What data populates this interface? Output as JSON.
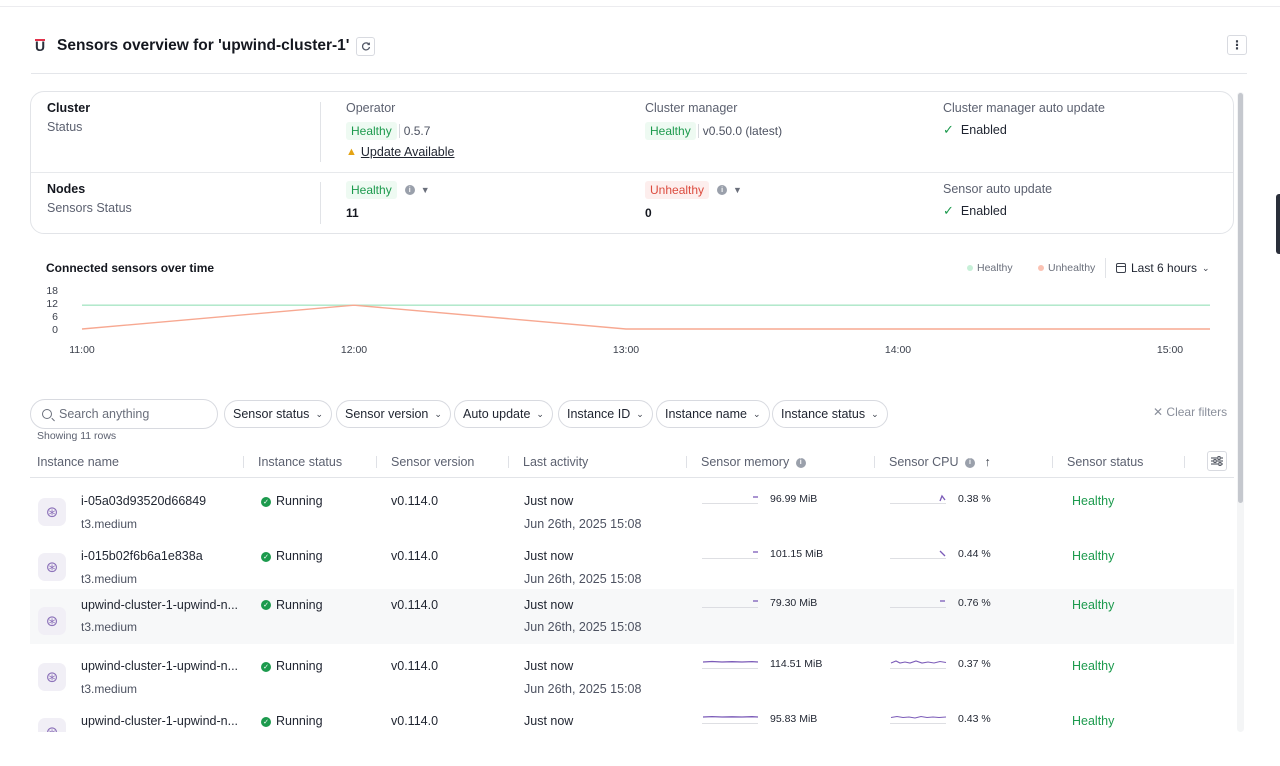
{
  "header": {
    "title": "Sensors overview for 'upwind-cluster-1'"
  },
  "summary": {
    "cluster_title": "Cluster",
    "cluster_sub": "Status",
    "operator_label": "Operator",
    "operator_status": "Healthy",
    "operator_version": "0.5.7",
    "operator_update": "Update Available",
    "manager_label": "Cluster manager",
    "manager_status": "Healthy",
    "manager_version": "v0.50.0 (latest)",
    "manager_auto_label": "Cluster manager auto update",
    "manager_auto_value": "Enabled",
    "nodes_title": "Nodes",
    "nodes_sub": "Sensors Status",
    "healthy_label": "Healthy",
    "healthy_count": "11",
    "unhealthy_label": "Unhealthy",
    "unhealthy_count": "0",
    "sensor_auto_label": "Sensor auto update",
    "sensor_auto_value": "Enabled"
  },
  "chart_header": {
    "title": "Connected sensors over time",
    "legend_healthy": "Healthy",
    "legend_unhealthy": "Unhealthy",
    "range": "Last 6 hours"
  },
  "chart_data": {
    "type": "line",
    "title": "Connected sensors over time",
    "x": [
      "11:00",
      "12:00",
      "13:00",
      "14:00",
      "15:00"
    ],
    "yticks": [
      "18",
      "12",
      "6",
      "0"
    ],
    "ylim": [
      0,
      18
    ],
    "series": [
      {
        "name": "Healthy",
        "color": "#a8e6c4",
        "values": [
          11,
          11,
          11,
          11,
          11
        ]
      },
      {
        "name": "Unhealthy",
        "color": "#f7a891",
        "values": [
          0,
          11,
          0,
          0,
          0
        ]
      }
    ],
    "legend": "top-right"
  },
  "filters": {
    "search_placeholder": "Search anything",
    "items": [
      "Sensor status",
      "Sensor version",
      "Auto update",
      "Instance ID",
      "Instance name",
      "Instance status"
    ],
    "clear": "Clear filters",
    "showing": "Showing 11 rows"
  },
  "table": {
    "headers": [
      "Instance name",
      "Instance status",
      "Sensor version",
      "Last activity",
      "Sensor memory",
      "Sensor CPU",
      "Sensor status"
    ],
    "rows": [
      {
        "name": "i-05a03d93520d66849",
        "type": "t3.medium",
        "status": "Running",
        "version": "v0.114.0",
        "activity": "Just now",
        "date": "Jun 26th, 2025 15:08",
        "memory": "96.99 MiB",
        "cpu": "0.38 %",
        "health": "Healthy"
      },
      {
        "name": "i-015b02f6b6a1e838a",
        "type": "t3.medium",
        "status": "Running",
        "version": "v0.114.0",
        "activity": "Just now",
        "date": "Jun 26th, 2025 15:08",
        "memory": "101.15 MiB",
        "cpu": "0.44 %",
        "health": "Healthy"
      },
      {
        "name": "upwind-cluster-1-upwind-n...",
        "type": "t3.medium",
        "status": "Running",
        "version": "v0.114.0",
        "activity": "Just now",
        "date": "Jun 26th, 2025 15:08",
        "memory": "79.30 MiB",
        "cpu": "0.76 %",
        "health": "Healthy"
      },
      {
        "name": "upwind-cluster-1-upwind-n...",
        "type": "t3.medium",
        "status": "Running",
        "version": "v0.114.0",
        "activity": "Just now",
        "date": "Jun 26th, 2025 15:08",
        "memory": "114.51 MiB",
        "cpu": "0.37 %",
        "health": "Healthy"
      },
      {
        "name": "upwind-cluster-1-upwind-n...",
        "type": "",
        "status": "Running",
        "version": "v0.114.0",
        "activity": "Just now",
        "date": "",
        "memory": "95.83 MiB",
        "cpu": "0.43 %",
        "health": "Healthy"
      }
    ]
  },
  "colors": {
    "healthy": "#1c9a4d",
    "unhealthy": "#dc4b3e",
    "sparkline": "#7b5bb8"
  }
}
